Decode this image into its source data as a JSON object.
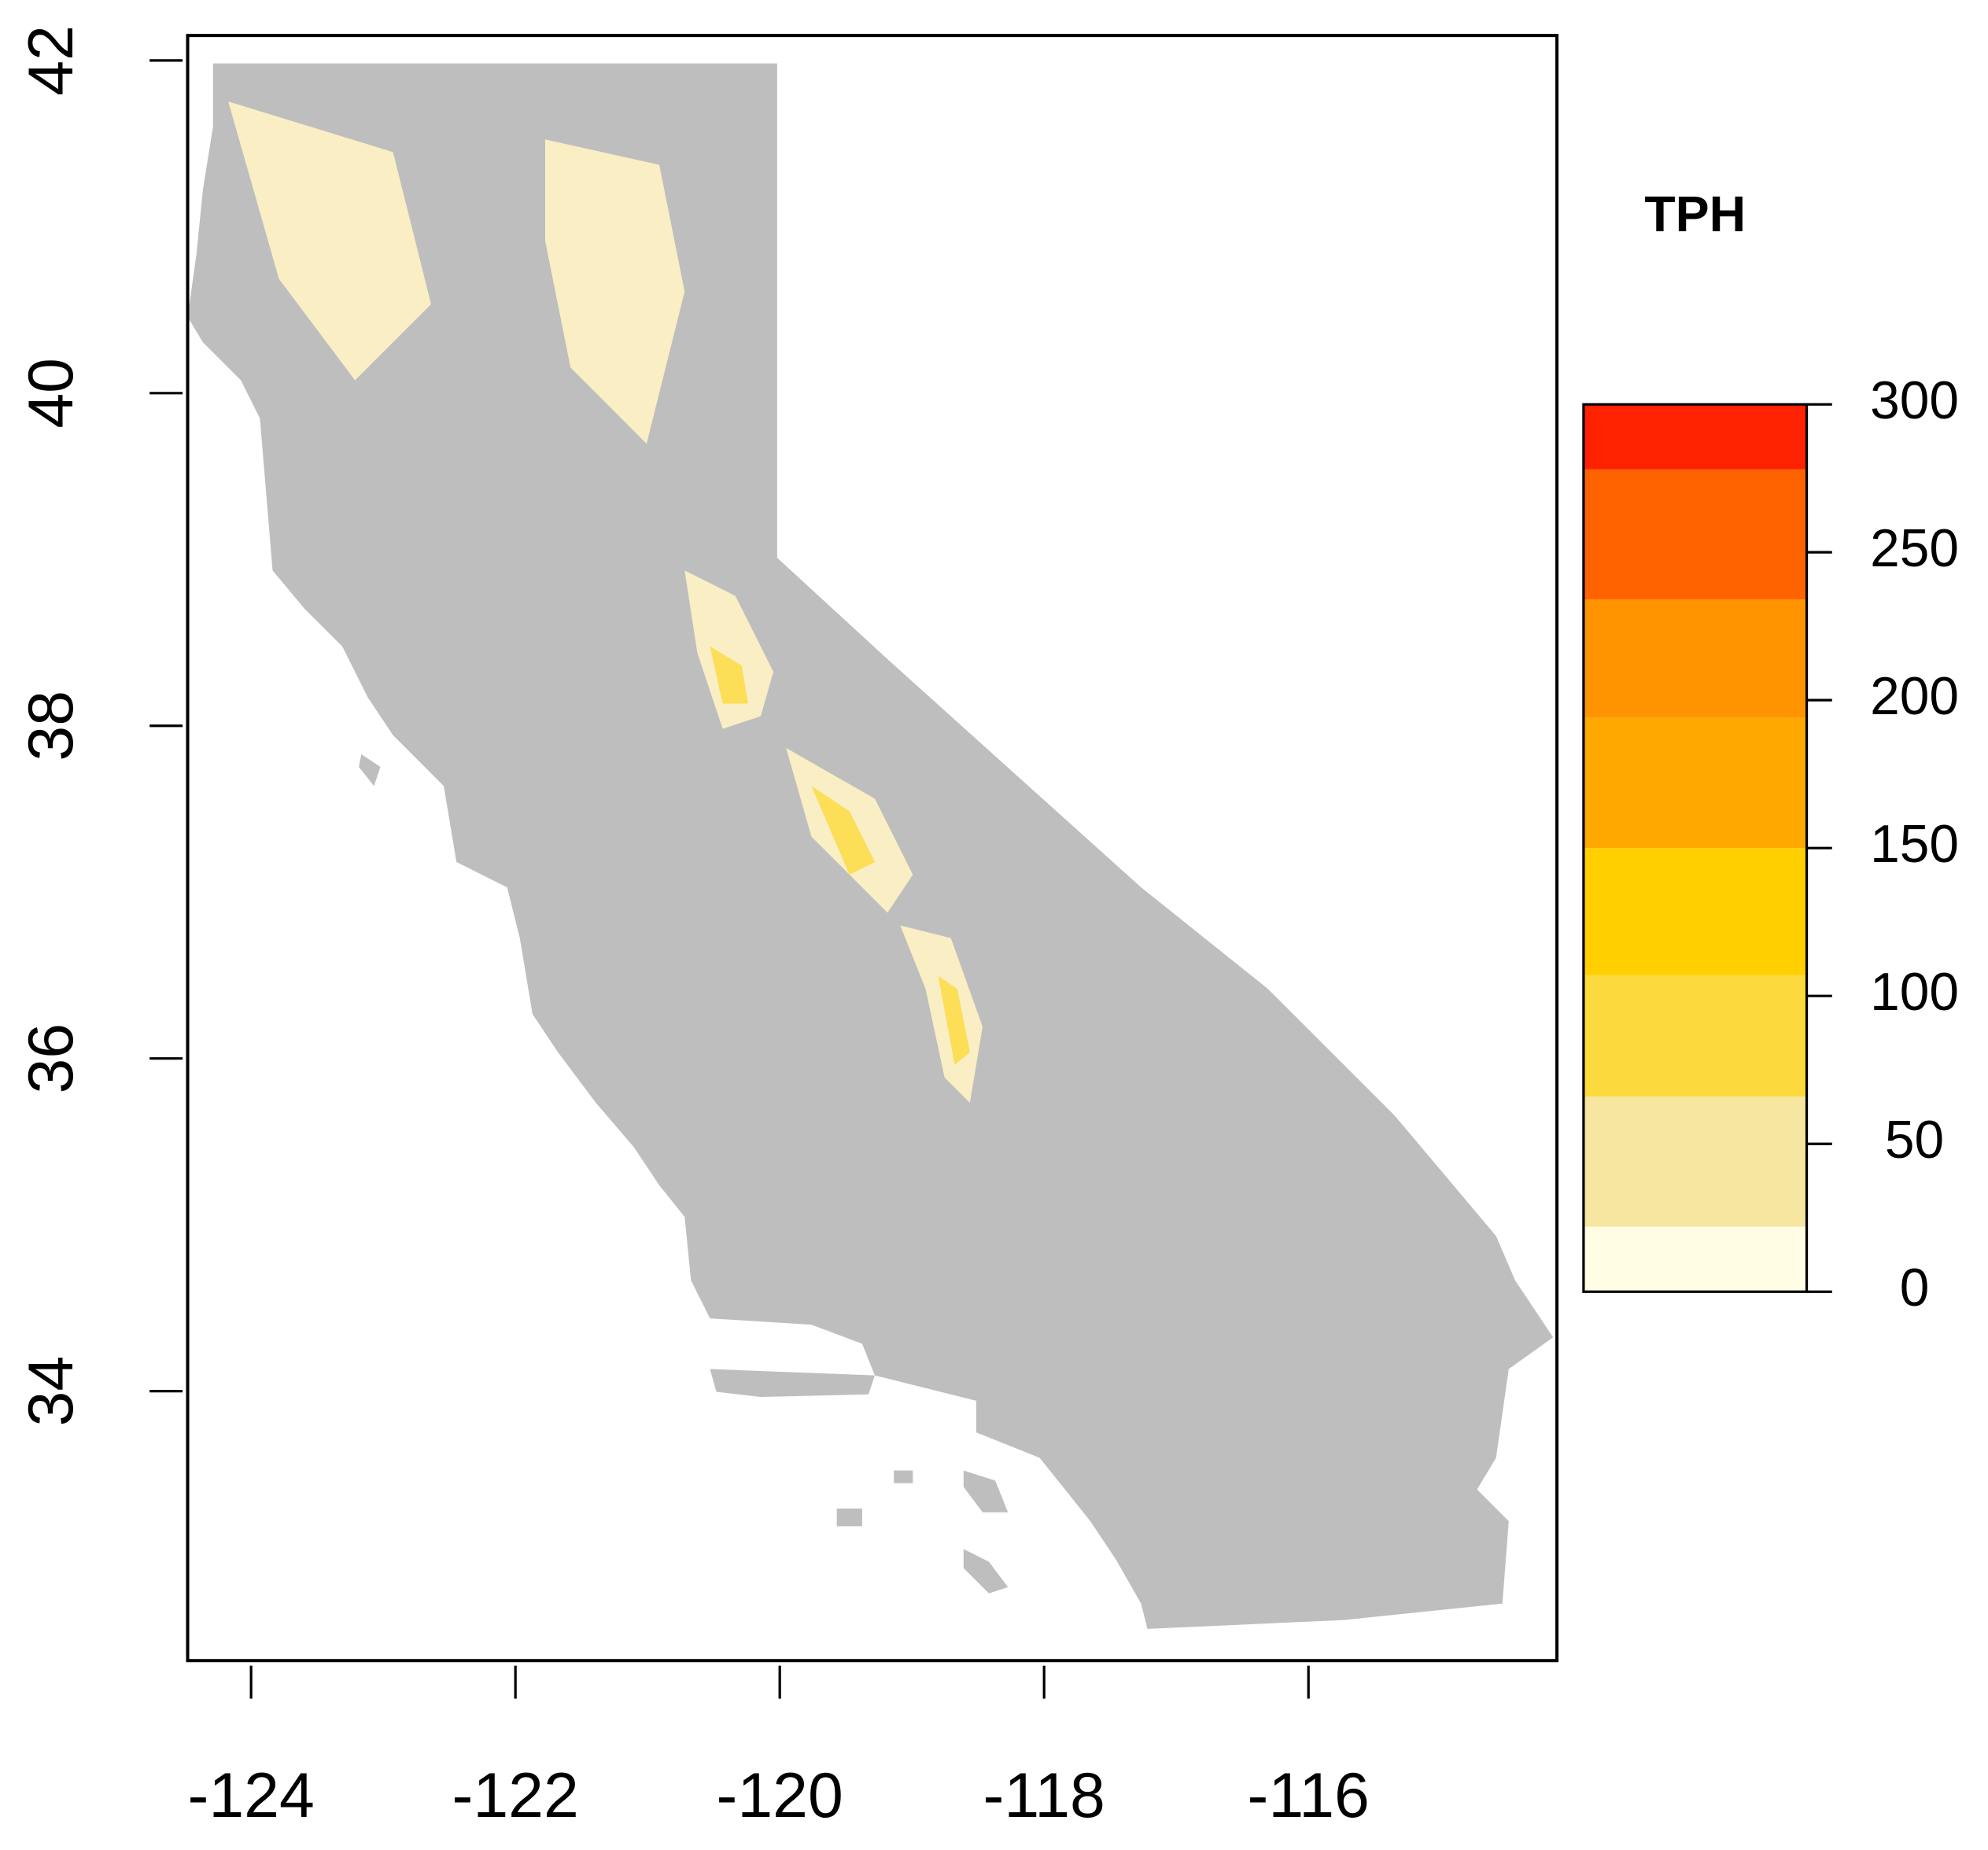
{
  "chart_data": {
    "type": "map",
    "xlim": [
      -124.48,
      -114.12
    ],
    "ylim": [
      32.38,
      42.15
    ],
    "xticks": [
      -124,
      -122,
      -120,
      -118,
      -116
    ],
    "yticks": [
      34,
      36,
      38,
      40,
      42
    ],
    "land_color": "#bebebe",
    "legend": {
      "title": "TPH",
      "lim": [
        0,
        300
      ],
      "ticks": [
        0,
        50,
        100,
        150,
        200,
        250,
        300
      ],
      "breaks": [
        0,
        22,
        66,
        107,
        150,
        194,
        234,
        278,
        300
      ],
      "colors": [
        "#fffde3",
        "#f6e6a0",
        "#fcd93c",
        "#ffcf00",
        "#ffa900",
        "#ff9400",
        "#ff6300",
        "#ff2200"
      ]
    }
  }
}
